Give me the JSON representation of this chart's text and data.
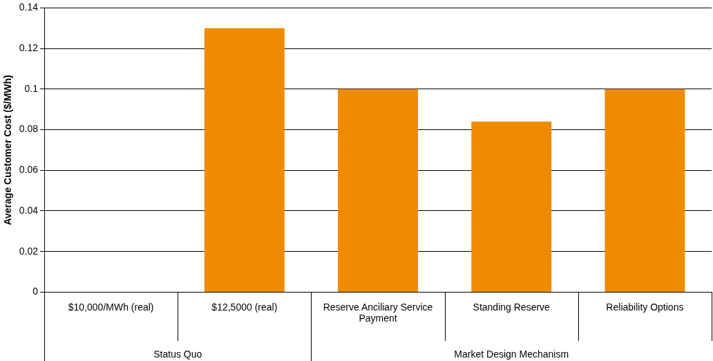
{
  "chart_data": {
    "type": "bar",
    "ylabel": "Average Customer Cost ($/MWh)",
    "categories": [
      "$10,000/MWh (real)",
      "$12,5000 (real)",
      "Reserve Anciliary Service Payment",
      "Standing Reserve",
      "Reliability Options"
    ],
    "values": [
      0,
      0.13,
      0.1,
      0.084,
      0.1
    ],
    "color": "#ee8b00",
    "ylim": [
      0,
      0.14
    ],
    "yticks": [
      0,
      0.02,
      0.04,
      0.06,
      0.08,
      0.1,
      0.12,
      0.14
    ],
    "grid": "y",
    "annotations": [
      "Status Quo",
      "Market Design Mechanism"
    ]
  }
}
